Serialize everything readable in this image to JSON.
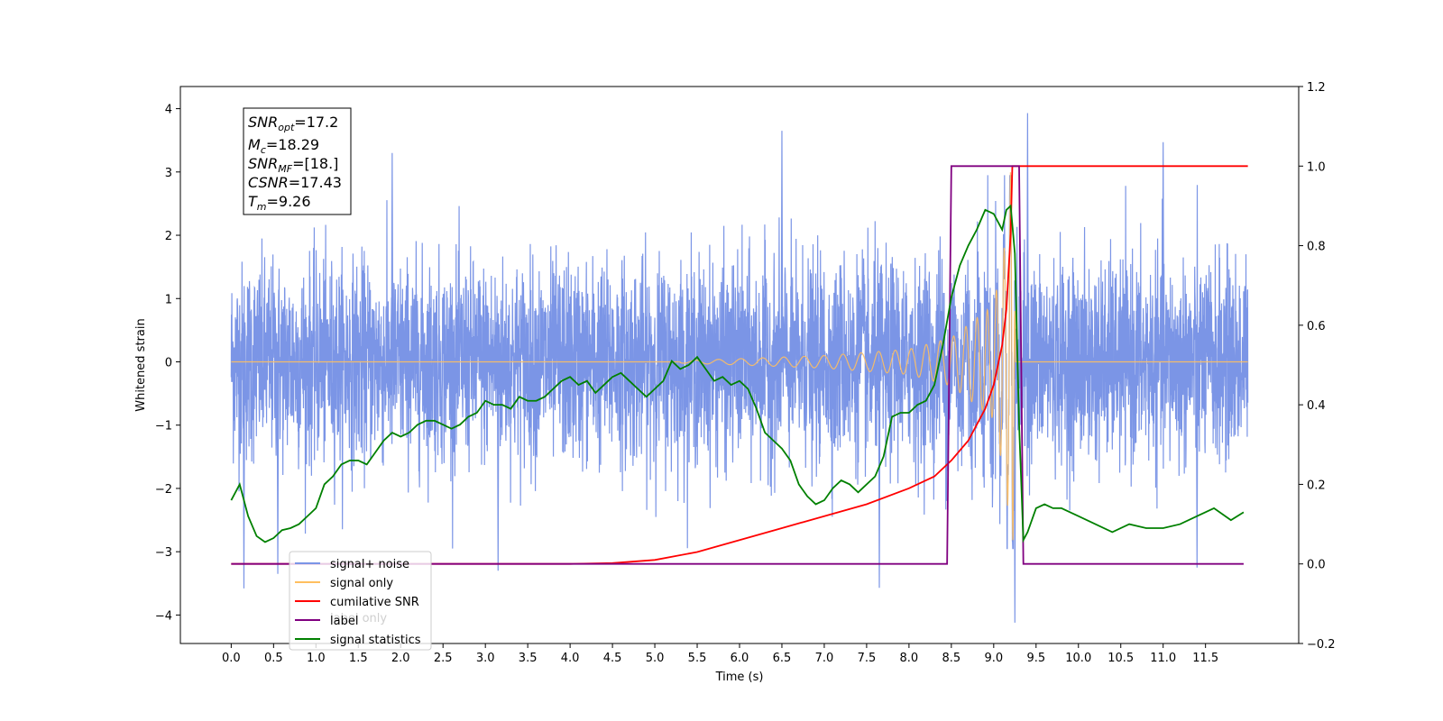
{
  "chart_data": {
    "type": "line",
    "xlabel": "Time (s)",
    "ylabel": "Whitened strain",
    "xlim": [
      -0.6,
      12.6
    ],
    "ylim": [
      -4.45,
      4.35
    ],
    "y2lim": [
      -0.2,
      1.2
    ],
    "x_ticks": [
      0.0,
      0.5,
      1.0,
      1.5,
      2.0,
      2.5,
      3.0,
      3.5,
      4.0,
      4.5,
      5.0,
      5.5,
      6.0,
      6.5,
      7.0,
      7.5,
      8.0,
      8.5,
      9.0,
      9.5,
      10.0,
      10.5,
      11.0,
      11.5
    ],
    "x_tick_labels": [
      "0.0",
      "0.5",
      "1.0",
      "1.5",
      "2.0",
      "2.5",
      "3.0",
      "3.5",
      "4.0",
      "4.5",
      "5.0",
      "5.5",
      "6.0",
      "6.5",
      "7.0",
      "7.5",
      "8.0",
      "8.5",
      "9.0",
      "9.5",
      "10.0",
      "10.5",
      "11.0",
      "11.5"
    ],
    "y_ticks": [
      -4,
      -3,
      -2,
      -1,
      0,
      1,
      2,
      3,
      4
    ],
    "y_tick_labels": [
      "−4",
      "−3",
      "−2",
      "−1",
      "0",
      "1",
      "2",
      "3",
      "4"
    ],
    "y2_ticks": [
      -0.2,
      0.0,
      0.2,
      0.4,
      0.6,
      0.8,
      1.0,
      1.2
    ],
    "y2_tick_labels": [
      "−0.2",
      "0.0",
      "0.2",
      "0.4",
      "0.6",
      "0.8",
      "1.0",
      "1.2"
    ],
    "grid": false,
    "legend_position": "lower-left",
    "series": [
      {
        "name": "signal+ noise",
        "axis": "left",
        "color": "#7b95e6",
        "description_of_shape": "dense noise from 0 to 12 s, amplitude roughly ±2.3 with spikes; includes chirp near 9.2 s",
        "x_range": [
          0.0,
          12.0
        ],
        "approx_envelope": [
          -2.3,
          2.3
        ],
        "notable_peaks": [
          [
            9.4,
            3.93
          ],
          [
            6.5,
            3.65
          ],
          [
            11.0,
            3.47
          ],
          [
            1.9,
            3.3
          ],
          [
            9.25,
            -4.12
          ],
          [
            0.15,
            -3.58
          ],
          [
            7.65,
            -3.57
          ],
          [
            3.15,
            -3.3
          ],
          [
            0.55,
            -3.35
          ],
          [
            11.4,
            -3.25
          ]
        ]
      },
      {
        "name": "signal only",
        "axis": "left",
        "color": "#ffbf5f",
        "description_of_shape": "flat at 0 until ~5.3 s, then chirp with growing amplitude, merger peak near 9.2 s (about 3.45 / −3.3), flat after 9.27 s",
        "merger_time": 9.22,
        "amplitude_points": [
          [
            5.3,
            0.02
          ],
          [
            6.0,
            0.05
          ],
          [
            7.0,
            0.1
          ],
          [
            8.0,
            0.2
          ],
          [
            8.5,
            0.38
          ],
          [
            9.0,
            0.9
          ],
          [
            9.15,
            2.0
          ],
          [
            9.22,
            3.45
          ],
          [
            9.26,
            0.0
          ]
        ]
      },
      {
        "name": "cumilative SNR",
        "axis": "right",
        "color": "#ff0000",
        "x": [
          0.0,
          4.0,
          4.5,
          5.0,
          5.5,
          6.0,
          6.5,
          7.0,
          7.5,
          8.0,
          8.3,
          8.5,
          8.7,
          8.9,
          9.0,
          9.1,
          9.15,
          9.2,
          9.22,
          9.25,
          12.0
        ],
        "y": [
          0.0,
          0.0,
          0.002,
          0.01,
          0.03,
          0.06,
          0.09,
          0.12,
          0.15,
          0.19,
          0.22,
          0.26,
          0.31,
          0.39,
          0.45,
          0.55,
          0.64,
          0.83,
          1.0,
          1.0,
          1.0
        ]
      },
      {
        "name": "label",
        "axis": "right",
        "color": "#800080",
        "x": [
          0.0,
          8.45,
          8.5,
          9.3,
          9.35,
          11.95
        ],
        "y": [
          0.0,
          0.0,
          1.0,
          1.0,
          0.0,
          0.0
        ]
      },
      {
        "name": "signal statistics",
        "axis": "right",
        "color": "#008000",
        "x": [
          0.0,
          0.1,
          0.2,
          0.3,
          0.4,
          0.5,
          0.6,
          0.7,
          0.8,
          0.9,
          1.0,
          1.1,
          1.2,
          1.3,
          1.4,
          1.5,
          1.6,
          1.7,
          1.8,
          1.9,
          2.0,
          2.1,
          2.2,
          2.3,
          2.4,
          2.5,
          2.6,
          2.7,
          2.8,
          2.9,
          3.0,
          3.1,
          3.2,
          3.3,
          3.4,
          3.5,
          3.6,
          3.7,
          3.8,
          3.9,
          4.0,
          4.1,
          4.2,
          4.3,
          4.4,
          4.5,
          4.6,
          4.7,
          4.8,
          4.9,
          5.0,
          5.1,
          5.2,
          5.3,
          5.4,
          5.5,
          5.6,
          5.7,
          5.8,
          5.9,
          6.0,
          6.1,
          6.2,
          6.3,
          6.4,
          6.5,
          6.6,
          6.7,
          6.8,
          6.9,
          7.0,
          7.1,
          7.2,
          7.3,
          7.4,
          7.5,
          7.6,
          7.7,
          7.8,
          7.9,
          8.0,
          8.1,
          8.2,
          8.3,
          8.4,
          8.5,
          8.6,
          8.7,
          8.8,
          8.9,
          9.0,
          9.05,
          9.1,
          9.15,
          9.2,
          9.25,
          9.3,
          9.35,
          9.4,
          9.5,
          9.6,
          9.7,
          9.8,
          9.9,
          10.0,
          10.2,
          10.4,
          10.6,
          10.8,
          11.0,
          11.2,
          11.4,
          11.6,
          11.8,
          11.95
        ],
        "y": [
          0.16,
          0.2,
          0.12,
          0.07,
          0.055,
          0.065,
          0.085,
          0.09,
          0.1,
          0.12,
          0.14,
          0.2,
          0.22,
          0.25,
          0.26,
          0.26,
          0.25,
          0.28,
          0.31,
          0.33,
          0.32,
          0.33,
          0.35,
          0.36,
          0.36,
          0.35,
          0.34,
          0.35,
          0.37,
          0.38,
          0.41,
          0.4,
          0.4,
          0.39,
          0.42,
          0.41,
          0.41,
          0.42,
          0.44,
          0.46,
          0.47,
          0.45,
          0.46,
          0.43,
          0.45,
          0.47,
          0.48,
          0.46,
          0.44,
          0.42,
          0.44,
          0.46,
          0.51,
          0.49,
          0.5,
          0.52,
          0.49,
          0.46,
          0.47,
          0.45,
          0.46,
          0.44,
          0.39,
          0.33,
          0.31,
          0.29,
          0.26,
          0.2,
          0.17,
          0.15,
          0.16,
          0.19,
          0.21,
          0.2,
          0.18,
          0.2,
          0.22,
          0.27,
          0.37,
          0.38,
          0.38,
          0.4,
          0.41,
          0.45,
          0.55,
          0.67,
          0.75,
          0.8,
          0.84,
          0.89,
          0.88,
          0.86,
          0.84,
          0.89,
          0.9,
          0.78,
          0.35,
          0.06,
          0.08,
          0.14,
          0.15,
          0.14,
          0.14,
          0.13,
          0.12,
          0.1,
          0.08,
          0.1,
          0.09,
          0.09,
          0.1,
          0.12,
          0.14,
          0.11,
          0.13
        ]
      }
    ],
    "legend_entries": [
      {
        "label": "signal+ noise",
        "color": "#7b95e6"
      },
      {
        "label": "signal only",
        "color": "#ffbf5f"
      },
      {
        "label": "cumilative SNR",
        "color": "#ff0000"
      },
      {
        "label": "label",
        "color": "#800080"
      },
      {
        "label": "signal statistics",
        "color": "#008000"
      }
    ],
    "annotation": {
      "lines": [
        {
          "var": "SNR",
          "sub": "opt",
          "value": "=17.2"
        },
        {
          "var": "M",
          "sub": "c",
          "value": "=18.29"
        },
        {
          "var": "SNR",
          "sub": "MF",
          "value": "=[18.]"
        },
        {
          "var": "CSNR",
          "sub": "",
          "value": "=17.43"
        },
        {
          "var": "T",
          "sub": "m",
          "value": "=9.26"
        }
      ]
    },
    "ghost_text": "label only"
  }
}
